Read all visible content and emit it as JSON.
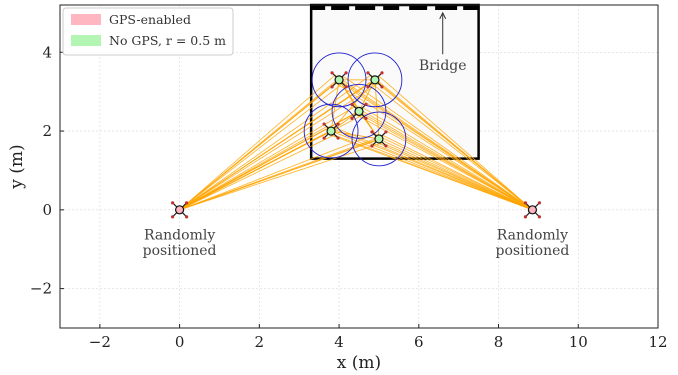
{
  "chart_data": {
    "type": "scatter",
    "xlabel": "x (m)",
    "ylabel": "y (m)",
    "xlim": [
      -3,
      12
    ],
    "ylim": [
      -3,
      5.2
    ],
    "xticks": [
      -2,
      0,
      2,
      4,
      6,
      8,
      10,
      12
    ],
    "yticks": [
      -2,
      0,
      2,
      4
    ],
    "xtick_labels": [
      "−2",
      "0",
      "2",
      "4",
      "6",
      "8",
      "10",
      "12"
    ],
    "ytick_labels": [
      "−2",
      "0",
      "2",
      "4"
    ],
    "grid": true,
    "legend_placement": "top-left",
    "legend": [
      {
        "label": "GPS-enabled",
        "color": "#ffb6c1"
      },
      {
        "label": "No GPS, r = 0.5 m",
        "color": "#b3f5b3"
      }
    ],
    "bridge": {
      "x0": 3.3,
      "x1": 7.5,
      "y0": 1.3,
      "y1": 5.2,
      "label": "Bridge"
    },
    "gps_drones": [
      {
        "x": 0.0,
        "y": 0.0
      },
      {
        "x": 8.85,
        "y": 0.0
      }
    ],
    "no_gps_drones": [
      {
        "x": 4.0,
        "y": 3.3
      },
      {
        "x": 4.9,
        "y": 3.3
      },
      {
        "x": 4.5,
        "y": 2.5
      },
      {
        "x": 3.8,
        "y": 2.0
      },
      {
        "x": 5.0,
        "y": 1.8
      }
    ],
    "radius": 0.5,
    "annotations": [
      {
        "text": "Randomly",
        "x": 0.0,
        "y": -0.75
      },
      {
        "text": "positioned",
        "x": 0.0,
        "y": -1.15
      },
      {
        "text": "Randomly",
        "x": 8.85,
        "y": -0.75
      },
      {
        "text": "positioned",
        "x": 8.85,
        "y": -1.15
      },
      {
        "text": "Bridge",
        "x": 6.6,
        "y": 3.55
      }
    ],
    "colors": {
      "links": "#ffa500",
      "circle": "#2020d0",
      "bridge_fill": "#fafafa",
      "gps_marker": "#ffb6c1",
      "nogps_marker": "#b3f5b3"
    }
  }
}
